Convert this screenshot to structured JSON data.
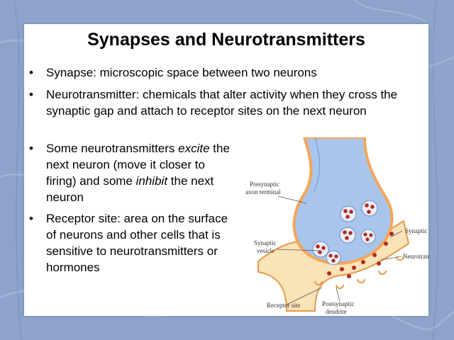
{
  "slide": {
    "title": "Synapses and Neurotransmitters",
    "bullets": [
      {
        "text": "Synapse: microscopic space between two neurons"
      },
      {
        "text": "Neurotransmitter: chemicals that alter activity when they cross the synaptic gap and attach to receptor sites on the next neuron"
      },
      {
        "parts": [
          "Some neurotransmitters ",
          "excite",
          " the next neuron (move it closer to firing) and some ",
          "inhibit",
          " the next neuron"
        ]
      },
      {
        "text": "Receptor site:  area on the surface of neurons and other cells that is sensitive to neurotransmitters or hormones"
      }
    ],
    "bullet_char": "•"
  },
  "diagram": {
    "labels": {
      "presynaptic_1": "Presynaptic",
      "presynaptic_2": "axon terminal",
      "vesicle_1": "Synaptic",
      "vesicle_2": "vesicle",
      "gap": "Synaptic gap",
      "neurotransmitter": "Neurotransmitter",
      "receptor": "Receptor site",
      "postsynaptic_1": "Postsynaptic",
      "postsynaptic_2": "dendrite"
    },
    "colors": {
      "terminal_fill": "#a9c5ec",
      "membrane": "#f2a65a",
      "vesicle": "#e8eef8",
      "molecule": "#b52a1e"
    }
  }
}
